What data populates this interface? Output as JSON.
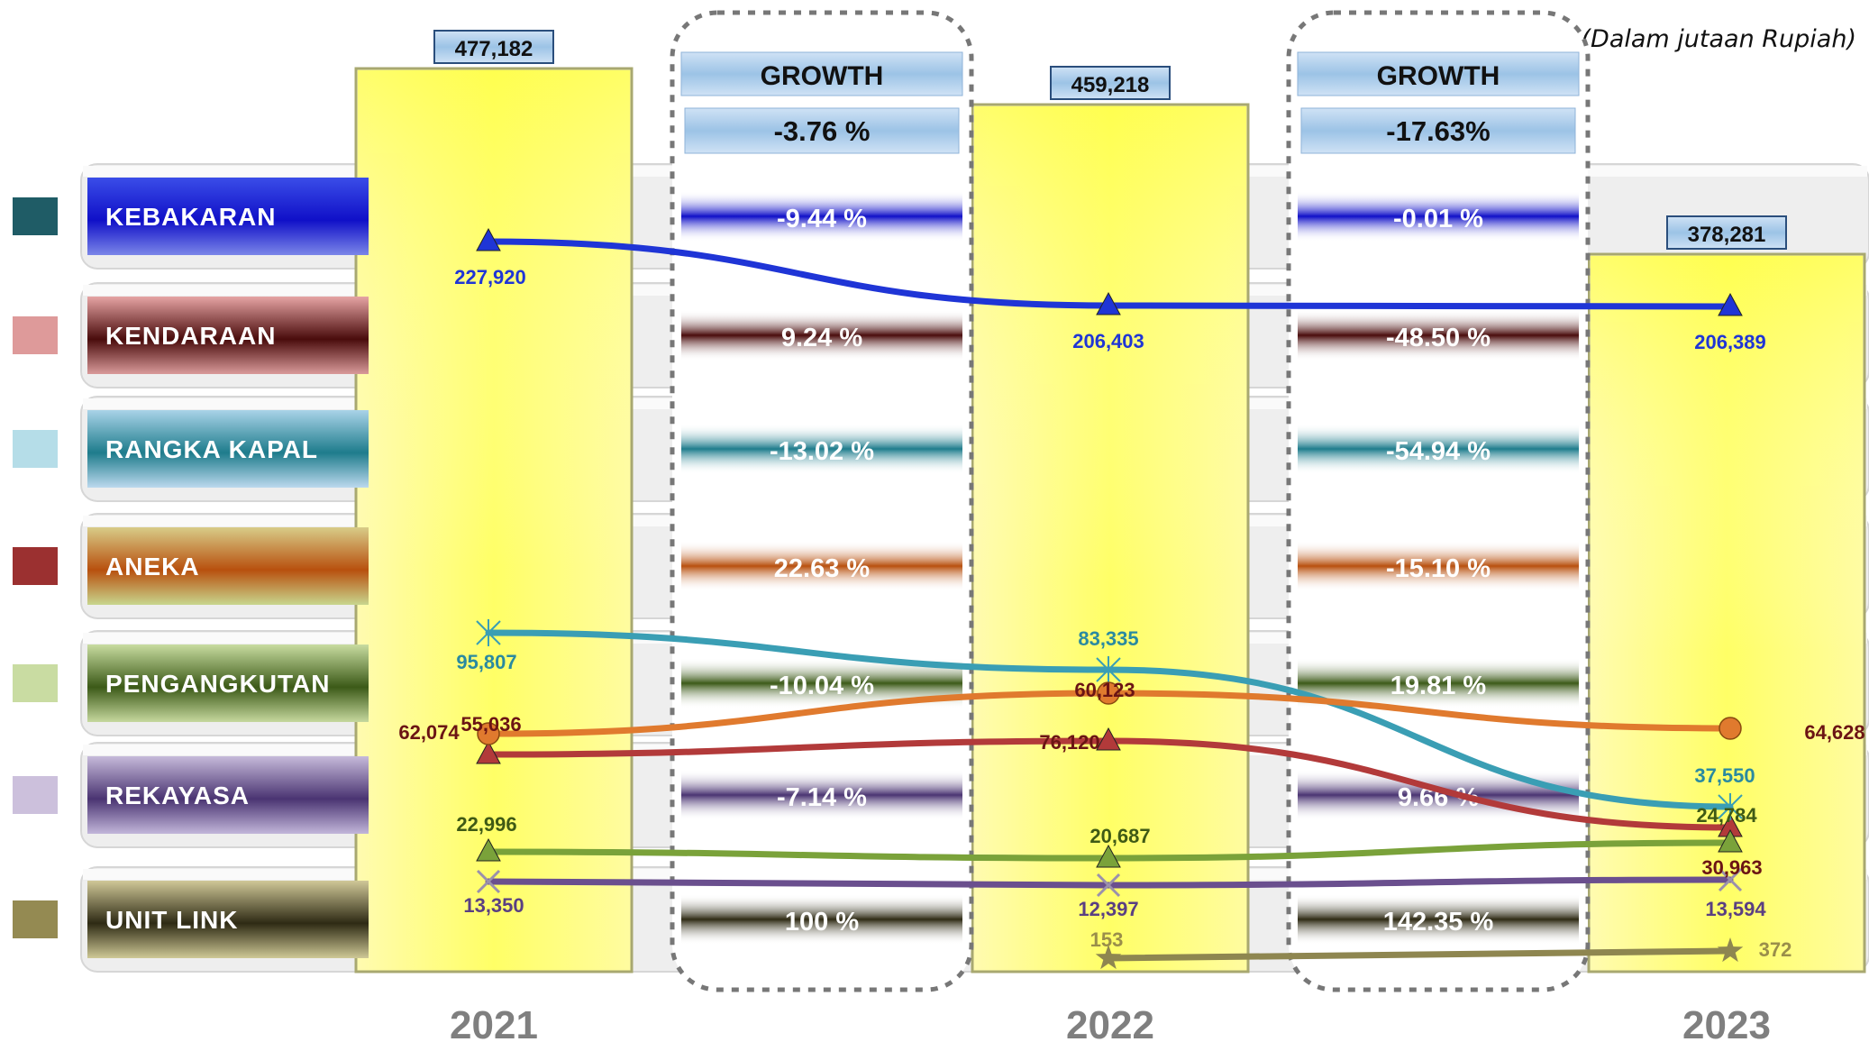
{
  "note": "(Dalam jutaan Rupiah)",
  "colors": {
    "column_yellow": "#ffff66",
    "box_blue": "#9cc3e6"
  },
  "chart_data": {
    "type": "line",
    "title": "",
    "xlabel": "",
    "ylabel": "",
    "categories": [
      "2021",
      "2022",
      "2023"
    ],
    "totals": [
      "477,182",
      "459,218",
      "378,281"
    ],
    "series": [
      {
        "name": "KEBAKARAN",
        "values": [
          227920,
          206403,
          206389
        ],
        "labels": [
          "227,920",
          "206,403",
          "206,389"
        ],
        "color": "#1f35d6",
        "marker": "triangle",
        "legend_color": "#1f5c66",
        "label_color": "#1f35d6",
        "label_grad": [
          "#3a4de8",
          "#1010c8",
          "#7b86e8"
        ]
      },
      {
        "name": "KENDARAAN",
        "values": [
          55036,
          60123,
          30963
        ],
        "labels": [
          "55,036",
          "60,123",
          "30,963"
        ],
        "color": "#b23a3a",
        "marker": "triangle",
        "legend_color": "#de9a9a",
        "label_color": "#6b1414",
        "label_grad": [
          "#e6a4a4",
          "#4a0c0c",
          "#d99a9a"
        ]
      },
      {
        "name": "RANGKA KAPAL",
        "values": [
          95807,
          83335,
          37550
        ],
        "labels": [
          "95,807",
          "83,335",
          "37,550"
        ],
        "color": "#3a9eb4",
        "marker": "asterisk",
        "legend_color": "#b5dde8",
        "label_color": "#2a8aa0",
        "label_grad": [
          "#a9d3e8",
          "#1e7c8c",
          "#bcd9ee"
        ]
      },
      {
        "name": "ANEKA",
        "values": [
          62074,
          76120,
          64628
        ],
        "labels": [
          "62,074",
          "76,120",
          "64,628"
        ],
        "color": "#e07a2e",
        "marker": "circle",
        "legend_color": "#9b3030",
        "label_color": "#6b1414",
        "label_grad": [
          "#d8cc88",
          "#b8500e",
          "#c8d68e"
        ]
      },
      {
        "name": "PENGANGKUTAN",
        "values": [
          22996,
          20687,
          24784
        ],
        "labels": [
          "22,996",
          "20,687",
          "24,784"
        ],
        "color": "#7aa23a",
        "marker": "triangle",
        "legend_color": "#c9dca2",
        "label_color": "#3f5a15",
        "label_grad": [
          "#c8dca0",
          "#3c5a18",
          "#c6d89e"
        ]
      },
      {
        "name": "REKAYASA",
        "values": [
          13350,
          12397,
          13594
        ],
        "labels": [
          "13,350",
          "12,397",
          "13,594"
        ],
        "color": "#6a4f8e",
        "marker": "x",
        "legend_color": "#ccc0dc",
        "label_color": "#5a3f82",
        "label_grad": [
          "#c6bada",
          "#4a3472",
          "#c2b6da"
        ]
      },
      {
        "name": "UNIT LINK",
        "values": [
          null,
          153,
          372
        ],
        "labels": [
          "",
          "153",
          "372"
        ],
        "color": "#8e8650",
        "marker": "star",
        "legend_color": "#948a52",
        "label_color": "#9a8e4a",
        "label_grad": [
          "#d0c898",
          "#2e2a14",
          "#cec896"
        ]
      }
    ],
    "growth": [
      {
        "label": "GROWTH",
        "total": "-3.76 %",
        "rows": [
          "-9.44 %",
          "9.24 %",
          "-13.02 %",
          "22.63 %",
          "-10.04 %",
          "-7.14 %",
          "100 %"
        ]
      },
      {
        "label": "GROWTH",
        "total": "-17.63%",
        "rows": [
          "-0.01 %",
          "-48.50 %",
          "-54.94 %",
          "-15.10 %",
          "19.81 %",
          "9.66 %",
          "142.35 %"
        ]
      }
    ],
    "grid": false,
    "legend": "left"
  }
}
